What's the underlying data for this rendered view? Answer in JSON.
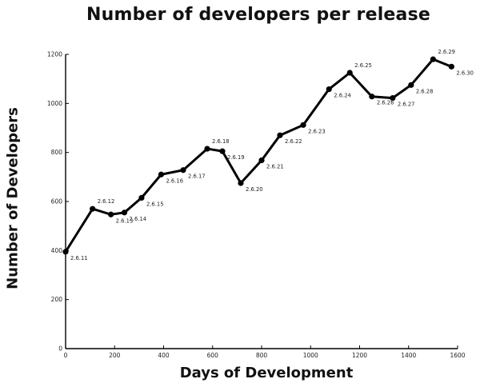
{
  "chart_data": {
    "type": "line",
    "title": "Number of developers per release",
    "xlabel": "Days of Development",
    "ylabel": "Number of Developers",
    "xlim": [
      0,
      1600
    ],
    "ylim": [
      0,
      1200
    ],
    "xticks": [
      0,
      200,
      400,
      600,
      800,
      1000,
      1200,
      1400,
      1600
    ],
    "yticks": [
      0,
      200,
      400,
      600,
      800,
      1000,
      1200
    ],
    "grid": false,
    "series": [
      {
        "color": "#000000",
        "points": [
          {
            "x": 0,
            "y": 395,
            "label": "2.6.11"
          },
          {
            "x": 110,
            "y": 570,
            "label": "2.6.12"
          },
          {
            "x": 185,
            "y": 547,
            "label": "2.6.13"
          },
          {
            "x": 240,
            "y": 555,
            "label": "2.6.14"
          },
          {
            "x": 310,
            "y": 615,
            "label": "2.6.15"
          },
          {
            "x": 390,
            "y": 710,
            "label": "2.6.16"
          },
          {
            "x": 480,
            "y": 728,
            "label": "2.6.17"
          },
          {
            "x": 578,
            "y": 815,
            "label": "2.6.18"
          },
          {
            "x": 640,
            "y": 805,
            "label": "2.6.19"
          },
          {
            "x": 715,
            "y": 675,
            "label": "2.6.20"
          },
          {
            "x": 800,
            "y": 768,
            "label": "2.6.21"
          },
          {
            "x": 875,
            "y": 870,
            "label": "2.6.22"
          },
          {
            "x": 970,
            "y": 912,
            "label": "2.6.23"
          },
          {
            "x": 1075,
            "y": 1058,
            "label": "2.6.24"
          },
          {
            "x": 1160,
            "y": 1125,
            "label": "2.6.25"
          },
          {
            "x": 1250,
            "y": 1028,
            "label": "2.6.26"
          },
          {
            "x": 1335,
            "y": 1022,
            "label": "2.6.27"
          },
          {
            "x": 1410,
            "y": 1075,
            "label": "2.6.28"
          },
          {
            "x": 1500,
            "y": 1180,
            "label": "2.6.29"
          },
          {
            "x": 1575,
            "y": 1150,
            "label": "2.6.30"
          }
        ]
      }
    ]
  }
}
